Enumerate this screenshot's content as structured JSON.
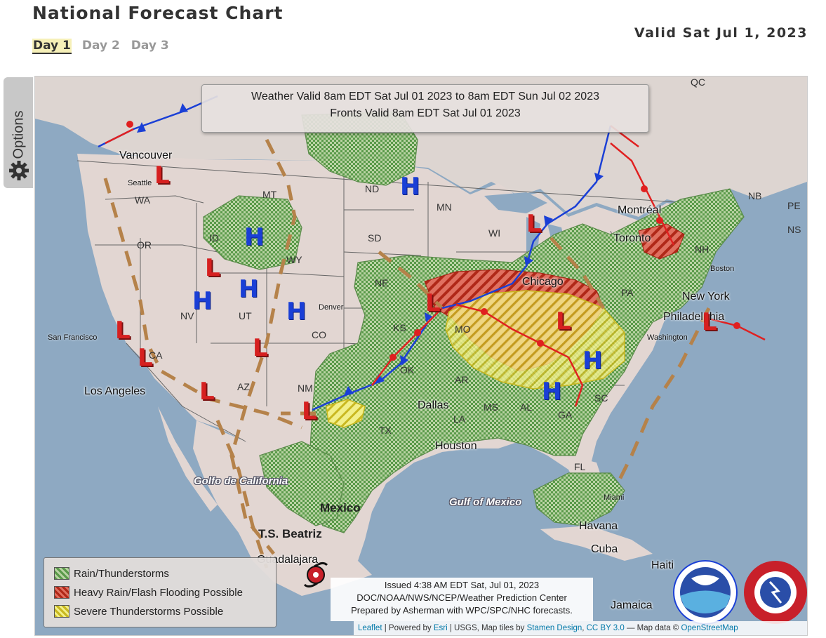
{
  "header": {
    "title": "National Forecast Chart",
    "valid_date": "Valid Sat Jul 1, 2023",
    "tabs": [
      {
        "label": "Day 1",
        "active": true
      },
      {
        "label": "Day 2",
        "active": false
      },
      {
        "label": "Day 3",
        "active": false
      }
    ]
  },
  "options_label": "Options",
  "map": {
    "valid_line1": "Weather Valid 8am EDT Sat Jul 01 2023 to 8am EDT Sun Jul 02 2023",
    "valid_line2": "Fronts Valid 8am EDT Sat Jul 01 2023",
    "legend": [
      {
        "label": "Rain/Thunderstorms",
        "color": "#4e9a3c"
      },
      {
        "label": "Heavy Rain/Flash Flooding Possible",
        "color": "#d03a2a"
      },
      {
        "label": "Severe Thunderstorms Possible",
        "color": "#e6e64a"
      }
    ],
    "issued": {
      "line1": "Issued 4:38 AM EDT Sat, Jul 01, 2023",
      "line2": "DOC/NOAA/NWS/NCEP/Weather Prediction Center",
      "line3": "Prepared by Asherman with WPC/SPC/NHC forecasts."
    },
    "attribution": {
      "leaflet": "Leaflet",
      "powered": "| Powered by",
      "esri": "Esri",
      "usgs": "| USGS, Map tiles by",
      "stamen": "Stamen Design",
      "cc": "CC BY 3.0",
      "mapdata": "— Map data ©",
      "osm": "OpenStreetMap"
    },
    "storm_label": "T.S. Beatriz",
    "states": [
      "WA",
      "OR",
      "ID",
      "MT",
      "WY",
      "ND",
      "SD",
      "NE",
      "MN",
      "WI",
      "NV",
      "UT",
      "CO",
      "KS",
      "MO",
      "OK",
      "AR",
      "TX",
      "LA",
      "MS",
      "AL",
      "GA",
      "SC",
      "FL",
      "NM",
      "AZ",
      "CA",
      "PA",
      "NH",
      "NB",
      "NS",
      "PE",
      "QC"
    ],
    "cities": [
      "Vancouver",
      "Seattle",
      "San Francisco",
      "Los Angeles",
      "Denver",
      "Dallas",
      "Houston",
      "Chicago",
      "Toronto",
      "Montréal",
      "New York",
      "Philadelphia",
      "Boston",
      "Washington",
      "Havana",
      "Miami",
      "Mexico",
      "Guadalajara",
      "Jamaica",
      "Cuba",
      "Haiti"
    ],
    "seas": [
      "Gulf of Mexico",
      "Golfo de California"
    ],
    "logos": [
      "NOAA",
      "NATIONAL WEATHER SERVICE"
    ],
    "colors": {
      "high": "#1a3fd6",
      "low": "#d62020",
      "cold_front": "#1a3fd6",
      "warm_front": "#e02020",
      "trough": "#b5824a"
    }
  }
}
